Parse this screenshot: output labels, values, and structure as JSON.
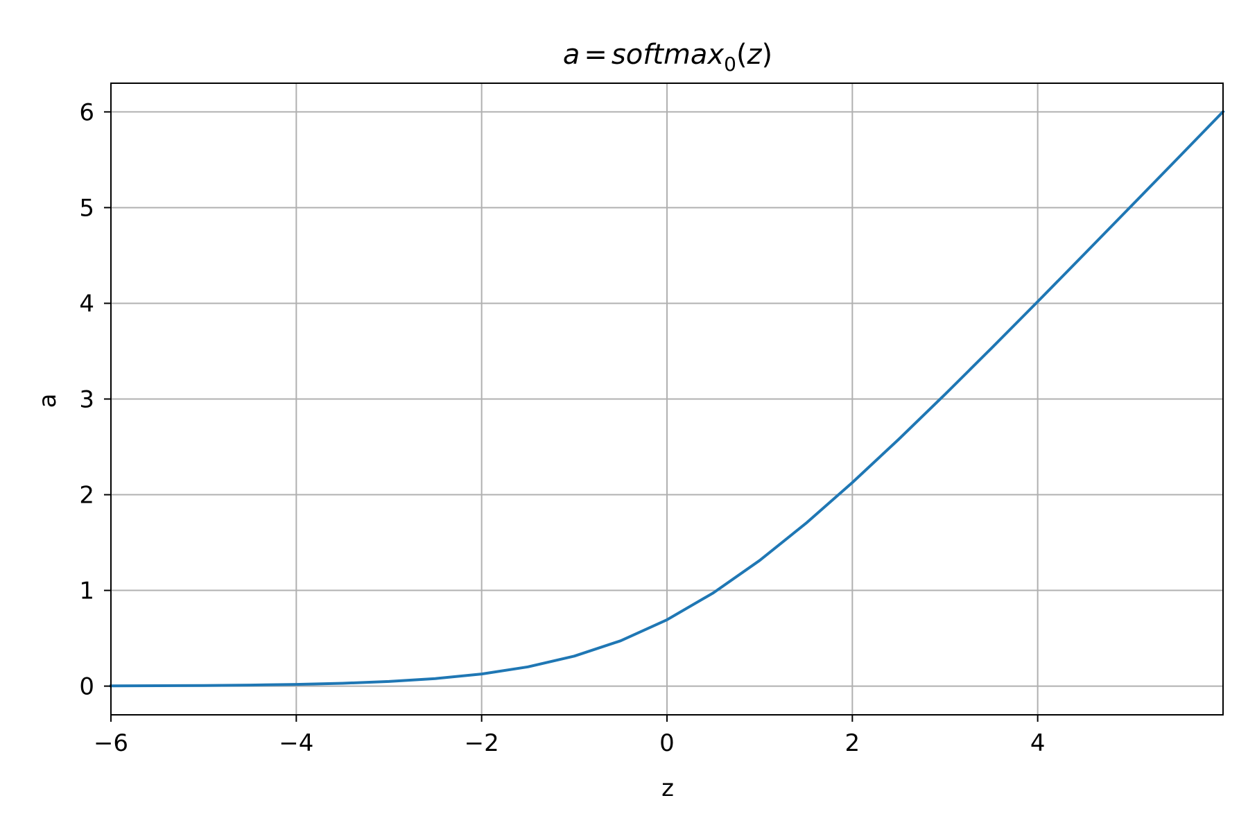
{
  "chart_data": {
    "type": "line",
    "title": {
      "lhs": "a",
      "eq": "=",
      "func": "softmax",
      "subscript": "0",
      "open": "(",
      "arg": "z",
      "close": ")"
    },
    "xlabel": "z",
    "ylabel": "a",
    "xlim": [
      -6,
      6
    ],
    "ylim": [
      -0.3,
      6.3
    ],
    "xticks": [
      -6,
      -4,
      -2,
      0,
      2,
      4
    ],
    "xtick_labels": [
      "−6",
      "−4",
      "−2",
      "0",
      "2",
      "4"
    ],
    "yticks": [
      0,
      1,
      2,
      3,
      4,
      5,
      6
    ],
    "ytick_labels": [
      "0",
      "1",
      "2",
      "3",
      "4",
      "5",
      "6"
    ],
    "grid": true,
    "series": [
      {
        "color": "#1f77b4",
        "x": [
          -6,
          -5.5,
          -5,
          -4.5,
          -4,
          -3.5,
          -3,
          -2.5,
          -2,
          -1.5,
          -1,
          -0.5,
          0,
          0.5,
          1,
          1.5,
          2,
          2.5,
          3,
          3.5,
          4,
          4.5,
          5,
          5.5,
          6
        ],
        "y": [
          0.0025,
          0.0041,
          0.0067,
          0.011,
          0.0181,
          0.0298,
          0.0486,
          0.0789,
          0.1269,
          0.2014,
          0.3133,
          0.4741,
          0.6931,
          0.9741,
          1.3133,
          1.7014,
          2.1269,
          2.5789,
          3.0486,
          3.5298,
          4.0181,
          4.511,
          5.0067,
          5.5041,
          6.0025
        ]
      }
    ]
  }
}
